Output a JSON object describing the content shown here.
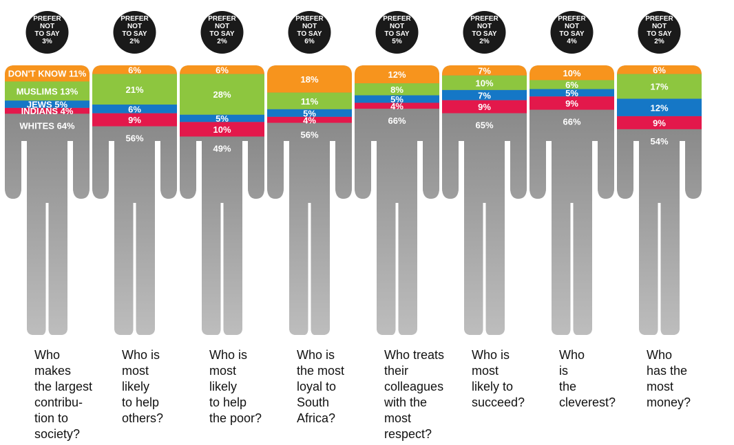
{
  "colors": {
    "dont_know": "#f7941d",
    "muslims": "#8dc63f",
    "jews": "#1577c6",
    "indians": "#e3184b",
    "whites": "#8a8a8a",
    "prefer_not_to_say": "#1a1a1a"
  },
  "chart_data": {
    "type": "bar",
    "stacked": true,
    "orientation": "vertical",
    "series_order": [
      "prefer_not_to_say",
      "dont_know",
      "muslims",
      "jews",
      "indians",
      "whites"
    ],
    "first_column_series_labels": {
      "dont_know": "DON'T KNOW",
      "muslims": "MUSLIMS",
      "jews": "JEWS",
      "indians": "INDIANS",
      "whites": "WHITES"
    },
    "head_label_lines": [
      "PREFER",
      "NOT",
      "TO SAY"
    ],
    "columns": [
      {
        "question_lines": [
          "Who",
          "makes",
          "the largest",
          "contribu-",
          "tion to",
          "society?"
        ],
        "prefer_not_to_say": 3,
        "dont_know": 11,
        "muslims": 13,
        "jews": 5,
        "indians": 4,
        "whites": 64
      },
      {
        "question_lines": [
          "Who is",
          "most",
          "likely",
          "to help",
          "others?"
        ],
        "prefer_not_to_say": 2,
        "dont_know": 6,
        "muslims": 21,
        "jews": 6,
        "indians": 9,
        "whites": 56
      },
      {
        "question_lines": [
          "Who is",
          "most",
          "likely",
          "to help",
          "the poor?"
        ],
        "prefer_not_to_say": 2,
        "dont_know": 6,
        "muslims": 28,
        "jews": 5,
        "indians": 10,
        "whites": 49
      },
      {
        "question_lines": [
          "Who is",
          "the most",
          "loyal to",
          "South",
          "Africa?"
        ],
        "prefer_not_to_say": 6,
        "dont_know": 18,
        "muslims": 11,
        "jews": 5,
        "indians": 4,
        "whites": 56
      },
      {
        "question_lines": [
          "Who treats",
          "their",
          "colleagues",
          "with the",
          "most",
          "respect?"
        ],
        "prefer_not_to_say": 5,
        "dont_know": 12,
        "muslims": 8,
        "jews": 5,
        "indians": 4,
        "whites": 66
      },
      {
        "question_lines": [
          "Who is",
          "most",
          "likely to",
          "succeed?"
        ],
        "prefer_not_to_say": 2,
        "dont_know": 7,
        "muslims": 10,
        "jews": 7,
        "indians": 9,
        "whites": 65
      },
      {
        "question_lines": [
          "Who",
          "is",
          "the",
          "cleverest?"
        ],
        "prefer_not_to_say": 4,
        "dont_know": 10,
        "muslims": 6,
        "jews": 5,
        "indians": 9,
        "whites": 66
      },
      {
        "question_lines": [
          "Who",
          "has the",
          "most",
          "money?"
        ],
        "prefer_not_to_say": 2,
        "dont_know": 6,
        "muslims": 17,
        "jews": 12,
        "indians": 9,
        "whites": 54
      }
    ]
  }
}
